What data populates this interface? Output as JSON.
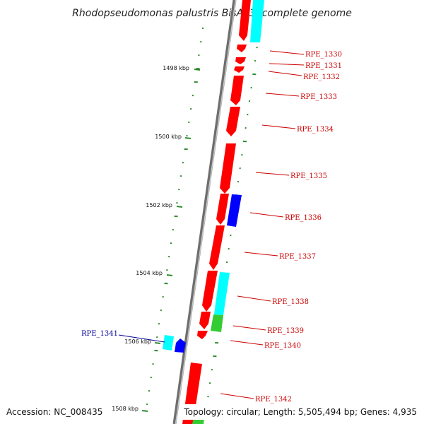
{
  "title": "Rhodopseudomonas palustris BisA53, complete genome",
  "footer": {
    "accession": "Accession: NC_008435",
    "topology": "Topology: circular; Length: 5,505,494 bp; Genes: 4,935"
  },
  "colors": {
    "forward_cds": "#ff0000",
    "reverse_cds": "#ff0000",
    "feature_cyan": "#00ffff",
    "feature_blue": "#0000ff",
    "feature_green": "#33cc33",
    "tick_green": "#2e8b2e",
    "label_red": "#cc0000",
    "label_blue": "#000099",
    "backbone": "#808080"
  },
  "kbp_ticks": [
    {
      "label": "1498 kbp"
    },
    {
      "label": "1500 kbp"
    },
    {
      "label": "1502 kbp"
    },
    {
      "label": "1504 kbp"
    },
    {
      "label": "1506 kbp"
    },
    {
      "label": "1508 kbp"
    }
  ],
  "gene_labels": [
    {
      "id": "RPE_1330",
      "color": "red"
    },
    {
      "id": "RPE_1331",
      "color": "red"
    },
    {
      "id": "RPE_1332",
      "color": "red"
    },
    {
      "id": "RPE_1333",
      "color": "red"
    },
    {
      "id": "RPE_1334",
      "color": "red"
    },
    {
      "id": "RPE_1335",
      "color": "red"
    },
    {
      "id": "RPE_1336",
      "color": "red"
    },
    {
      "id": "RPE_1337",
      "color": "red"
    },
    {
      "id": "RPE_1338",
      "color": "red"
    },
    {
      "id": "RPE_1339",
      "color": "red"
    },
    {
      "id": "RPE_1340",
      "color": "red"
    },
    {
      "id": "RPE_1341",
      "color": "blue"
    },
    {
      "id": "RPE_1342",
      "color": "red"
    }
  ]
}
